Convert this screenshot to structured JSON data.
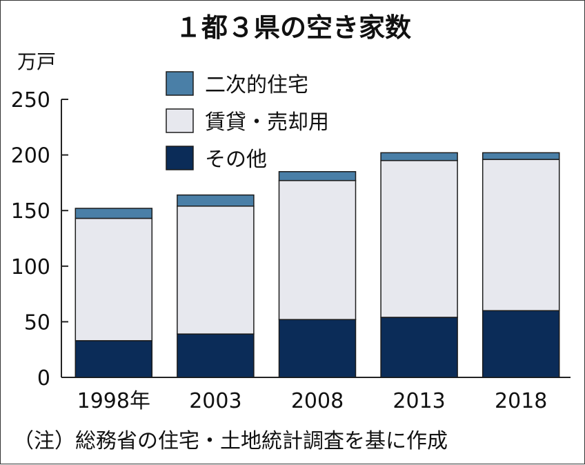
{
  "chart_data": {
    "type": "bar",
    "stacked": true,
    "title": "１都３県の空き家数",
    "ylabel": "万戸",
    "ylim": [
      0,
      250
    ],
    "yticks": [
      0,
      50,
      100,
      150,
      200,
      250
    ],
    "grid": false,
    "legend_position": "top-left",
    "categories": [
      "1998年",
      "2003",
      "2008",
      "2013",
      "2018"
    ],
    "series": [
      {
        "name": "その他",
        "color": "#0b2c58",
        "values": [
          33,
          39,
          52,
          54,
          60
        ]
      },
      {
        "name": "賃貸・売却用",
        "color": "#e7e8ee",
        "values": [
          110,
          115,
          125,
          141,
          136
        ]
      },
      {
        "name": "二次的住宅",
        "color": "#4a7fa7",
        "values": [
          9,
          10,
          8,
          7,
          6
        ]
      }
    ],
    "legend_order": [
      "二次的住宅",
      "賃貸・売却用",
      "その他"
    ],
    "note": "（注）総務省の住宅・土地統計調査を基に作成"
  }
}
